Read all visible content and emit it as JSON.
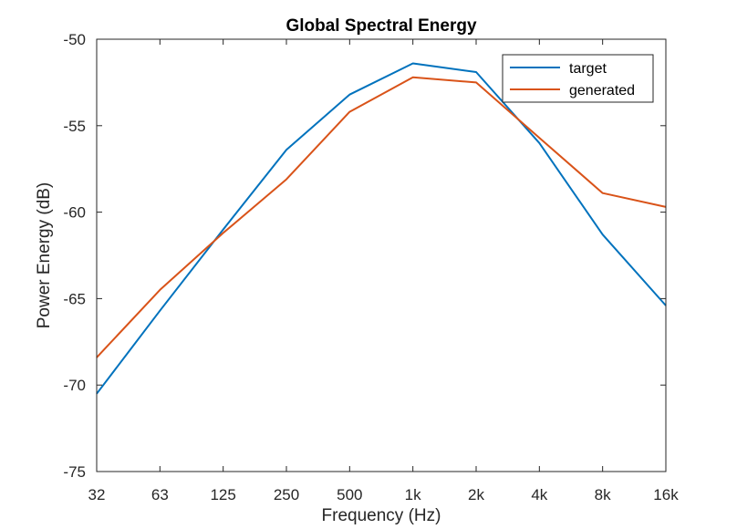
{
  "chart_data": {
    "type": "line",
    "title": "Global Spectral Energy",
    "xlabel": "Frequency (Hz)",
    "ylabel": "Power Energy (dB)",
    "x_categories": [
      "32",
      "63",
      "125",
      "250",
      "500",
      "1k",
      "2k",
      "4k",
      "8k",
      "16k"
    ],
    "ylim": [
      -75,
      -50
    ],
    "yticks": [
      -75,
      -70,
      -65,
      -60,
      -55,
      -50
    ],
    "grid": false,
    "legend_position": "top-right",
    "series": [
      {
        "name": "target",
        "color": "#0072BD",
        "values": [
          -70.5,
          -65.7,
          -61.0,
          -56.4,
          -53.2,
          -51.4,
          -51.9,
          -56.0,
          -61.3,
          -65.4
        ]
      },
      {
        "name": "generated",
        "color": "#D95319",
        "values": [
          -68.4,
          -64.5,
          -61.2,
          -58.1,
          -54.2,
          -52.2,
          -52.5,
          -55.7,
          -58.9,
          -59.7
        ]
      }
    ]
  }
}
